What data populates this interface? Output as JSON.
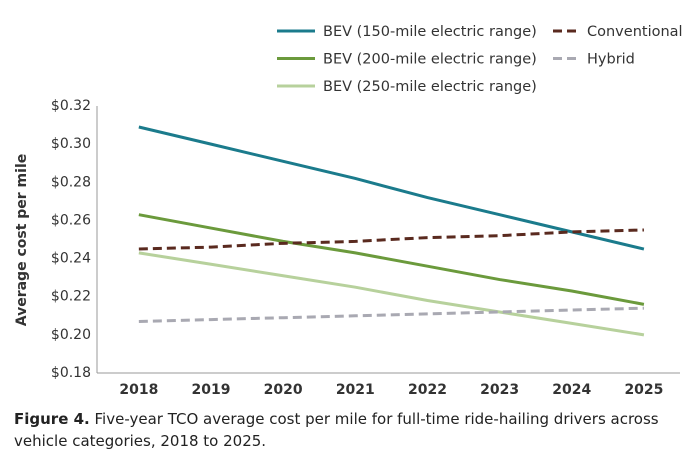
{
  "chart_data": {
    "type": "line",
    "ylabel": "Average cost per mile",
    "x": [
      2018,
      2019,
      2020,
      2021,
      2022,
      2023,
      2024,
      2025
    ],
    "xlim": [
      2017.42,
      2025.5
    ],
    "xticks": [
      2018,
      2019,
      2020,
      2021,
      2022,
      2023,
      2024,
      2025
    ],
    "ylim": [
      0.18,
      0.32
    ],
    "yticks": [
      {
        "value": 0.18,
        "label": "$0.18"
      },
      {
        "value": 0.2,
        "label": "$0.20"
      },
      {
        "value": 0.22,
        "label": "$0.22"
      },
      {
        "value": 0.24,
        "label": "$0.24"
      },
      {
        "value": 0.26,
        "label": "$0.26"
      },
      {
        "value": 0.28,
        "label": "$0.28"
      },
      {
        "value": 0.3,
        "label": "$0.30"
      },
      {
        "value": 0.32,
        "label": "$0.32"
      }
    ],
    "grid": false,
    "legend": "top",
    "series": [
      {
        "name": "BEV (150-mile electric range)",
        "color": "#1b7b8c",
        "dashed": false,
        "values": [
          0.309,
          0.3,
          0.291,
          0.282,
          0.272,
          0.263,
          0.254,
          0.245
        ]
      },
      {
        "name": "BEV (200-mile electric range)",
        "color": "#6b9a3c",
        "dashed": false,
        "values": [
          0.263,
          0.256,
          0.249,
          0.243,
          0.236,
          0.229,
          0.223,
          0.216
        ]
      },
      {
        "name": "BEV (250-mile electric range)",
        "color": "#b7d19c",
        "dashed": false,
        "values": [
          0.243,
          0.237,
          0.231,
          0.225,
          0.218,
          0.212,
          0.206,
          0.2
        ]
      },
      {
        "name": "Conventional",
        "color": "#5a2a1f",
        "dashed": true,
        "values": [
          0.245,
          0.246,
          0.248,
          0.249,
          0.251,
          0.252,
          0.254,
          0.255
        ]
      },
      {
        "name": "Hybrid",
        "color": "#a9a9b2",
        "dashed": true,
        "values": [
          0.207,
          0.208,
          0.209,
          0.21,
          0.211,
          0.212,
          0.213,
          0.214
        ]
      }
    ]
  },
  "caption_label": "Figure 4.",
  "caption": "Five-year TCO average cost per mile for full-time ride-hailing drivers across vehicle categories, 2018 to 2025."
}
